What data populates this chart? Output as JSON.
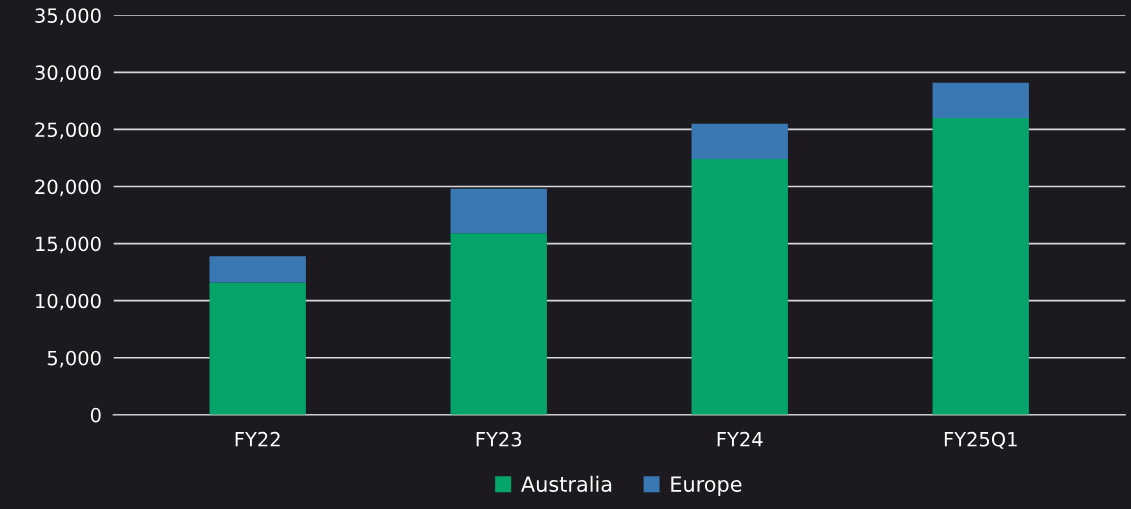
{
  "chart_data": {
    "type": "bar",
    "stacked": true,
    "categories": [
      "FY22",
      "FY23",
      "FY24",
      "FY25Q1"
    ],
    "series": [
      {
        "name": "Australia",
        "color": "#05a46a",
        "values": [
          11600,
          15900,
          22400,
          26000
        ]
      },
      {
        "name": "Europe",
        "color": "#3a78b4",
        "values": [
          2300,
          3900,
          3100,
          3100
        ]
      }
    ],
    "ylim": [
      0,
      35000
    ],
    "yticks": [
      {
        "value": 0,
        "label": "0"
      },
      {
        "value": 5000,
        "label": "5,000"
      },
      {
        "value": 10000,
        "label": "10,000"
      },
      {
        "value": 15000,
        "label": "15,000"
      },
      {
        "value": 20000,
        "label": "20,000"
      },
      {
        "value": 25000,
        "label": "25,000"
      },
      {
        "value": 30000,
        "label": "30,000"
      },
      {
        "value": 35000,
        "label": "35,000"
      }
    ],
    "grid": "y",
    "legend": "bottom"
  }
}
